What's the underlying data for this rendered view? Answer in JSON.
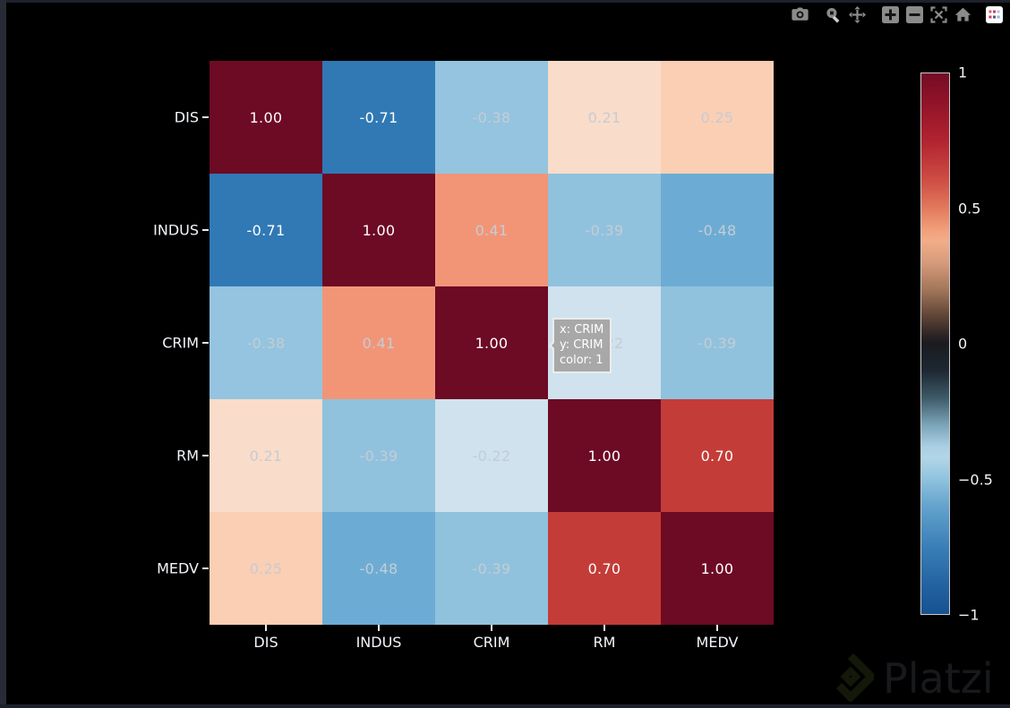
{
  "modebar": {
    "buttons": [
      {
        "name": "download-png",
        "icon": "camera-icon"
      },
      {
        "name": "zoom",
        "icon": "magnifier-icon"
      },
      {
        "name": "pan",
        "icon": "move-arrows-icon"
      },
      {
        "name": "zoom-in",
        "icon": "plus-icon"
      },
      {
        "name": "zoom-out",
        "icon": "minus-icon"
      },
      {
        "name": "autoscale",
        "icon": "autoscale-icon"
      },
      {
        "name": "reset-axes",
        "icon": "home-icon"
      },
      {
        "name": "plotly-logo",
        "icon": "plotly-logo-icon"
      }
    ]
  },
  "chart_data": {
    "type": "heatmap",
    "title": "",
    "x_categories": [
      "DIS",
      "INDUS",
      "CRIM",
      "RM",
      "MEDV"
    ],
    "y_categories": [
      "DIS",
      "INDUS",
      "CRIM",
      "RM",
      "MEDV"
    ],
    "values": [
      [
        1.0,
        -0.71,
        -0.38,
        0.21,
        0.25
      ],
      [
        -0.71,
        1.0,
        0.41,
        -0.39,
        -0.48
      ],
      [
        -0.38,
        0.41,
        1.0,
        -0.22,
        -0.39
      ],
      [
        0.21,
        -0.39,
        -0.22,
        1.0,
        0.7
      ],
      [
        0.25,
        -0.48,
        -0.39,
        0.7,
        1.0
      ]
    ],
    "value_format": "2dp",
    "zmin": -1,
    "zmax": 1,
    "grid": false,
    "legend_position": "right-colorbar",
    "colorbar": {
      "tick_labels": [
        "1",
        "0.5",
        "0",
        "−0.5",
        "−1"
      ]
    },
    "colors": {
      "cell_anchors": [
        [
          -1.0,
          "#0d4285"
        ],
        [
          -0.71,
          "#3079b5"
        ],
        [
          -0.48,
          "#6cacd4"
        ],
        [
          -0.39,
          "#90c2de"
        ],
        [
          -0.22,
          "#cfe2ee"
        ],
        [
          0.0,
          "#f6f0ea"
        ],
        [
          0.21,
          "#fadcca"
        ],
        [
          0.25,
          "#fbcfb4"
        ],
        [
          0.41,
          "#f29577"
        ],
        [
          0.7,
          "#c43c38"
        ],
        [
          1.0,
          "#6d0a24"
        ]
      ],
      "cell_text_light": "#ffffff",
      "cell_text_muted": "#c5ccd4",
      "axis_text": "#f2f5fa",
      "plot_bg": "#000000"
    }
  },
  "hover_tooltip": {
    "lines": [
      "x: CRIM",
      "y: CRIM",
      "color: 1"
    ]
  },
  "watermark": {
    "text": "Platzi"
  }
}
